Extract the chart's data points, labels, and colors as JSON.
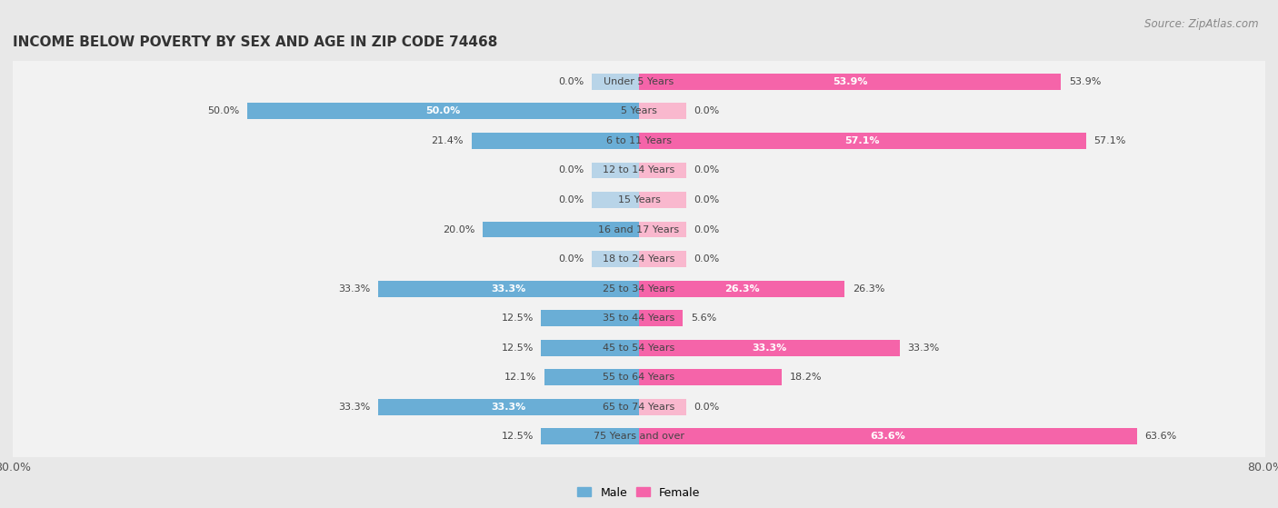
{
  "title": "INCOME BELOW POVERTY BY SEX AND AGE IN ZIP CODE 74468",
  "source": "Source: ZipAtlas.com",
  "categories": [
    "Under 5 Years",
    "5 Years",
    "6 to 11 Years",
    "12 to 14 Years",
    "15 Years",
    "16 and 17 Years",
    "18 to 24 Years",
    "25 to 34 Years",
    "35 to 44 Years",
    "45 to 54 Years",
    "55 to 64 Years",
    "65 to 74 Years",
    "75 Years and over"
  ],
  "male_values": [
    0.0,
    50.0,
    21.4,
    0.0,
    0.0,
    20.0,
    0.0,
    33.3,
    12.5,
    12.5,
    12.1,
    33.3,
    12.5
  ],
  "female_values": [
    53.9,
    0.0,
    57.1,
    0.0,
    0.0,
    0.0,
    0.0,
    26.3,
    5.6,
    33.3,
    18.2,
    0.0,
    63.6
  ],
  "male_color_strong": "#6aaed6",
  "male_color_weak": "#b8d4e8",
  "female_color_strong": "#f564a9",
  "female_color_weak": "#f9b8ce",
  "male_label": "Male",
  "female_label": "Female",
  "xlim": 80.0,
  "background_color": "#e8e8e8",
  "row_color": "#f2f2f2",
  "title_fontsize": 11,
  "source_fontsize": 8.5,
  "value_fontsize": 8,
  "cat_fontsize": 8,
  "legend_fontsize": 9
}
